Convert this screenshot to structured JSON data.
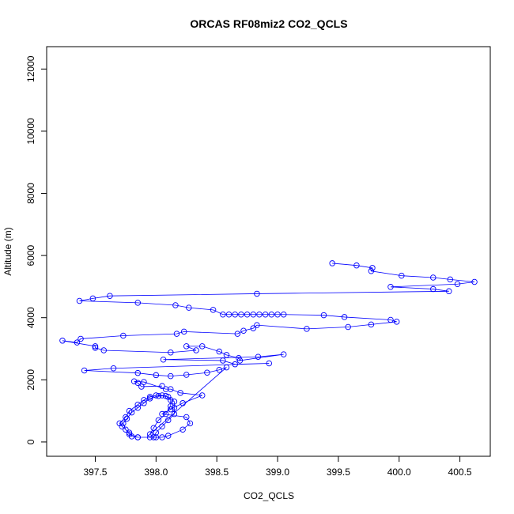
{
  "chart_data": {
    "type": "line",
    "title": "ORCAS RF08miz2 CO2_QCLS",
    "x_label": "CO2_QCLS",
    "y_label": "Altitude (m)",
    "color": "blue",
    "markers": "open-circle",
    "x": [
      398.05,
      397.88,
      397.85,
      397.82,
      397.9,
      398.08,
      398.12,
      398.2,
      398.38,
      398.22,
      398.12,
      398.05,
      398.25,
      398.28,
      398.22,
      398.1,
      398.05,
      398.0,
      397.95,
      397.85,
      397.8,
      397.78,
      397.72,
      397.7,
      397.75,
      397.78,
      397.85,
      397.9,
      397.95,
      398.0,
      398.05,
      398.1,
      398.15,
      398.15,
      398.15,
      398.1,
      398.05,
      398.0,
      397.98,
      397.85,
      397.78,
      397.75,
      397.73,
      397.76,
      397.8,
      397.85,
      397.9,
      397.95,
      398.02,
      398.08,
      398.12,
      398.12,
      398.08,
      398.02,
      397.98,
      397.95,
      398.58,
      398.52,
      398.42,
      398.25,
      398.12,
      398.0,
      397.85,
      397.41,
      397.65,
      398.93,
      398.65,
      398.55,
      398.06,
      398.84,
      399.05,
      398.69,
      398.68,
      398.58,
      398.52,
      398.38,
      398.25,
      398.33,
      398.12,
      397.57,
      397.5,
      397.5,
      397.23,
      397.35,
      397.38,
      397.73,
      398.17,
      398.23,
      398.67,
      398.72,
      398.8,
      398.83,
      399.24,
      399.58,
      399.77,
      399.98,
      399.93,
      399.55,
      399.38,
      399.05,
      399.0,
      398.95,
      398.9,
      398.85,
      398.8,
      398.75,
      398.7,
      398.65,
      398.6,
      398.55,
      398.47,
      398.27,
      398.16,
      397.85,
      397.37,
      397.48,
      397.62,
      398.83,
      400.41,
      400.28,
      399.93,
      400.48,
      400.62,
      400.42,
      400.28,
      400.02,
      399.77,
      399.78,
      399.65,
      399.45
    ],
    "values": [
      1800,
      1780,
      1900,
      1950,
      1930,
      1700,
      1700,
      1580,
      1500,
      1250,
      1050,
      900,
      800,
      600,
      400,
      200,
      150,
      150,
      150,
      150,
      180,
      300,
      500,
      600,
      800,
      1000,
      1200,
      1350,
      1450,
      1500,
      1500,
      1450,
      1300,
      1100,
      900,
      700,
      500,
      300,
      150,
      150,
      250,
      400,
      600,
      750,
      950,
      1100,
      1250,
      1400,
      1480,
      1480,
      1350,
      1150,
      900,
      700,
      450,
      250,
      2400,
      2320,
      2230,
      2160,
      2120,
      2150,
      2220,
      2300,
      2370,
      2530,
      2500,
      2620,
      2650,
      2740,
      2820,
      2620,
      2700,
      2800,
      2910,
      3080,
      3080,
      2950,
      2880,
      2950,
      3030,
      3080,
      3260,
      3200,
      3320,
      3420,
      3480,
      3550,
      3480,
      3580,
      3660,
      3760,
      3640,
      3700,
      3780,
      3870,
      3930,
      4020,
      4080,
      4100,
      4100,
      4100,
      4100,
      4100,
      4100,
      4100,
      4100,
      4100,
      4100,
      4100,
      4250,
      4320,
      4400,
      4480,
      4540,
      4620,
      4700,
      4770,
      4850,
      4920,
      4990,
      5080,
      5150,
      5230,
      5290,
      5350,
      5500,
      5600,
      5680,
      5750
    ],
    "xlim": [
      397.1,
      400.75
    ],
    "xticks": [
      397.5,
      {
        "value": 398,
        "label": "398.0"
      },
      398.5,
      {
        "value": 399,
        "label": "399.0"
      },
      399.5,
      {
        "value": 400,
        "label": "400.0"
      },
      400.5
    ],
    "ylim": [
      -460,
      12720
    ],
    "yticks": [
      0,
      2000,
      4000,
      6000,
      8000,
      10000,
      12000
    ]
  }
}
